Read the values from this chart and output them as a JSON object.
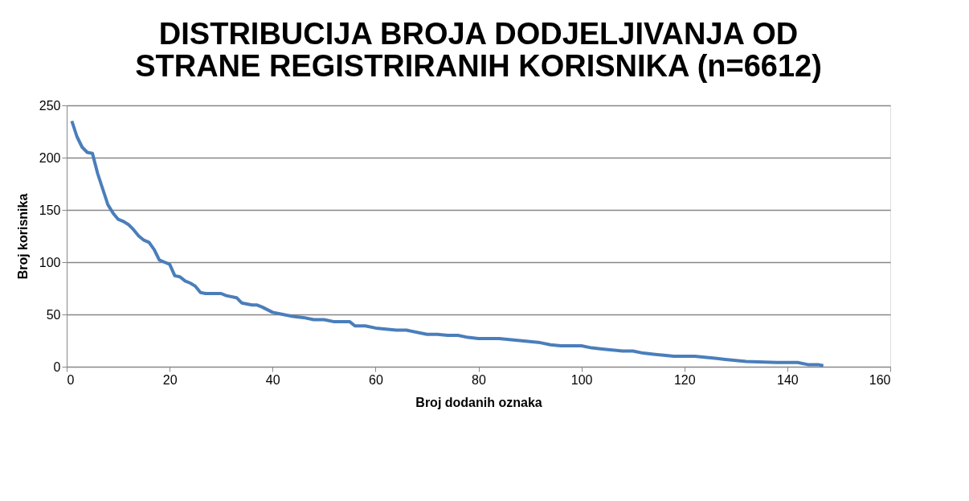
{
  "chart_data": {
    "type": "line",
    "title": "DISTRIBUCIJA BROJA DODJELJIVANJA OD\nSTRANE REGISTRIRANIH KORISNIKA (n=6612)",
    "xlabel": "Broj  dodanih oznaka",
    "ylabel": "Broj korisnika",
    "x": [
      1,
      2,
      3,
      4,
      5,
      6,
      7,
      8,
      9,
      10,
      11,
      12,
      13,
      14,
      15,
      16,
      17,
      18,
      19,
      20,
      21,
      22,
      23,
      24,
      25,
      26,
      27,
      30,
      31,
      33,
      34,
      36,
      37,
      38,
      40,
      42,
      44,
      46,
      48,
      50,
      52,
      55,
      56,
      58,
      60,
      62,
      64,
      66,
      70,
      72,
      74,
      76,
      78,
      80,
      84,
      86,
      88,
      90,
      92,
      94,
      96,
      100,
      102,
      104,
      106,
      108,
      110,
      112,
      114,
      116,
      118,
      122,
      124,
      126,
      128,
      130,
      132,
      138,
      142,
      144,
      146,
      147
    ],
    "series": [
      {
        "color": "#4a7ebb",
        "values": [
          235,
          220,
          210,
          205,
          204,
          185,
          170,
          155,
          147,
          141,
          139,
          136,
          131,
          125,
          121,
          119,
          112,
          102,
          100,
          98,
          87,
          86,
          82,
          80,
          77,
          71,
          70,
          70,
          68,
          66,
          61,
          59,
          59,
          57,
          52,
          50,
          48,
          47,
          45,
          45,
          43,
          43,
          39,
          39,
          37,
          36,
          35,
          35,
          31,
          31,
          30,
          30,
          28,
          27,
          27,
          26,
          25,
          24,
          23,
          21,
          20,
          20,
          18,
          17,
          16,
          15,
          15,
          13,
          12,
          11,
          10,
          10,
          9,
          8,
          7,
          6,
          5,
          4,
          4,
          2,
          2,
          1
        ]
      }
    ],
    "xlim": [
      0,
      160
    ],
    "xticks": [
      0,
      20,
      40,
      60,
      80,
      100,
      120,
      140,
      160
    ],
    "ylim": [
      0,
      250
    ],
    "yticks": [
      0,
      50,
      100,
      150,
      200,
      250
    ],
    "grid": "y",
    "legend": false,
    "marker": "none",
    "line_style": "solid"
  }
}
